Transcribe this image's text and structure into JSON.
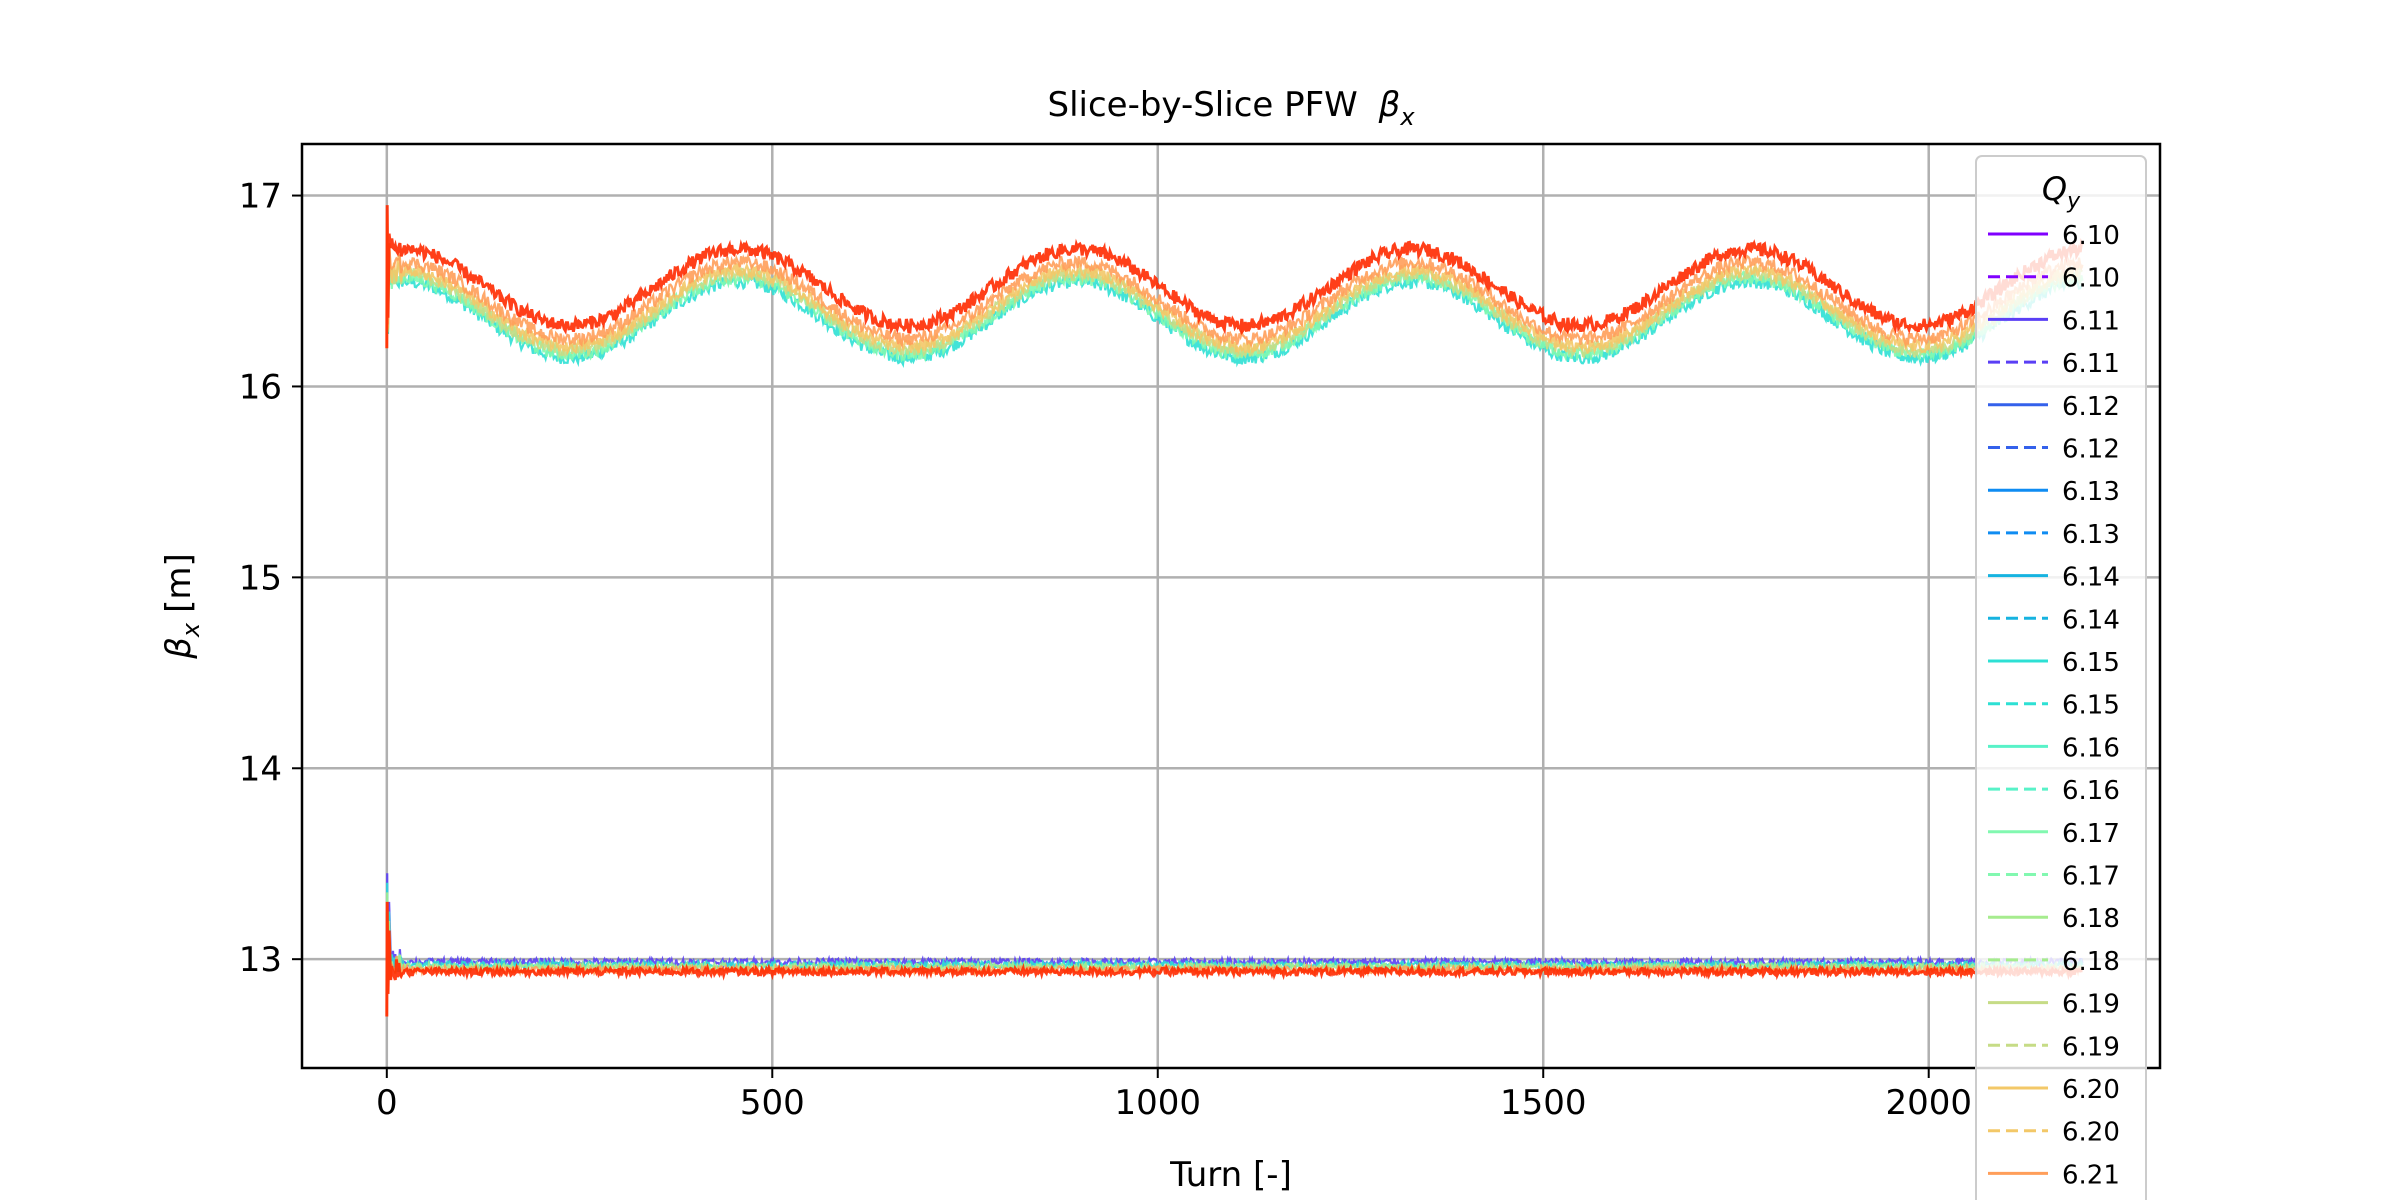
{
  "chart_data": {
    "type": "line",
    "title": "Slice-by-Slice PFW",
    "title_symbol": "β",
    "title_subscript": "x",
    "xlabel": "Turn [-]",
    "ylabel_symbol": "β",
    "ylabel_subscript": "x",
    "ylabel_unit": "[m]",
    "xlim": [
      -110,
      2300
    ],
    "ylim": [
      12.43,
      17.27
    ],
    "xticks": [
      0,
      500,
      1000,
      1500,
      2000
    ],
    "yticks": [
      13,
      14,
      15,
      16,
      17
    ],
    "xtick_labels": [
      "0",
      "500",
      "1000",
      "1500",
      "2000"
    ],
    "ytick_labels": [
      "13",
      "14",
      "15",
      "16",
      "17"
    ],
    "grid": true,
    "x_range": [
      0,
      2200
    ],
    "legend": {
      "placement": "top-right",
      "title_symbol": "Q",
      "title_subscript": "y",
      "entries": [
        {
          "label": "6.10",
          "color": "#8000ff",
          "dash": false
        },
        {
          "label": "6.10",
          "color": "#8000ff",
          "dash": true
        },
        {
          "label": "6.11",
          "color": "#5a3ff5",
          "dash": false
        },
        {
          "label": "6.11",
          "color": "#5a3ff5",
          "dash": true
        },
        {
          "label": "6.12",
          "color": "#3461eb",
          "dash": false
        },
        {
          "label": "6.12",
          "color": "#3461eb",
          "dash": true
        },
        {
          "label": "6.13",
          "color": "#0f8cf2",
          "dash": false
        },
        {
          "label": "6.13",
          "color": "#0f8cf2",
          "dash": true
        },
        {
          "label": "6.14",
          "color": "#16b3e0",
          "dash": false
        },
        {
          "label": "6.14",
          "color": "#16b3e0",
          "dash": true
        },
        {
          "label": "6.15",
          "color": "#2de0d4",
          "dash": false
        },
        {
          "label": "6.15",
          "color": "#2de0d4",
          "dash": true
        },
        {
          "label": "6.16",
          "color": "#58f2c8",
          "dash": false
        },
        {
          "label": "6.16",
          "color": "#58f2c8",
          "dash": true
        },
        {
          "label": "6.17",
          "color": "#82f8b0",
          "dash": false
        },
        {
          "label": "6.17",
          "color": "#82f8b0",
          "dash": true
        },
        {
          "label": "6.18",
          "color": "#a6ec8e",
          "dash": false
        },
        {
          "label": "6.18",
          "color": "#a6ec8e",
          "dash": true
        },
        {
          "label": "6.19",
          "color": "#c6dc86",
          "dash": false
        },
        {
          "label": "6.19",
          "color": "#c6dc86",
          "dash": true
        },
        {
          "label": "6.20",
          "color": "#f3c868",
          "dash": false
        },
        {
          "label": "6.20",
          "color": "#f3c868",
          "dash": true
        },
        {
          "label": "6.21",
          "color": "#ff9e5a",
          "dash": false
        }
      ]
    },
    "series": [
      {
        "group": "upper",
        "color": "#2de0d4",
        "mean": 16.35,
        "amplitude": 0.2,
        "period": 437,
        "phase_turn": 20,
        "noise": 0.035,
        "initial": [
          16.2,
          16.85
        ]
      },
      {
        "group": "upper",
        "color": "#82f8b0",
        "mean": 16.37,
        "amplitude": 0.2,
        "period": 437,
        "phase_turn": 20,
        "noise": 0.035,
        "initial": [
          16.2,
          16.85
        ]
      },
      {
        "group": "upper",
        "color": "#c6dc86",
        "mean": 16.39,
        "amplitude": 0.2,
        "period": 437,
        "phase_turn": 20,
        "noise": 0.035,
        "initial": [
          16.2,
          16.85
        ]
      },
      {
        "group": "upper",
        "color": "#f3c868",
        "mean": 16.41,
        "amplitude": 0.2,
        "period": 437,
        "phase_turn": 20,
        "noise": 0.035,
        "initial": [
          16.2,
          16.9
        ]
      },
      {
        "group": "upper",
        "color": "#ff9e5a",
        "mean": 16.45,
        "amplitude": 0.2,
        "period": 437,
        "phase_turn": 20,
        "noise": 0.035,
        "initial": [
          16.2,
          16.9
        ]
      },
      {
        "group": "upper",
        "color": "#ff2a00",
        "mean": 16.52,
        "amplitude": 0.2,
        "period": 437,
        "phase_turn": 20,
        "noise": 0.035,
        "initial": [
          16.2,
          16.95
        ]
      },
      {
        "group": "lower",
        "color": "#5a3ff5",
        "mean": 12.985,
        "amplitude": 0.0,
        "period": 437,
        "phase_turn": 0,
        "noise": 0.018,
        "initial": [
          12.75,
          13.45
        ]
      },
      {
        "group": "lower",
        "color": "#2de0d4",
        "mean": 12.97,
        "amplitude": 0.0,
        "period": 437,
        "phase_turn": 0,
        "noise": 0.018,
        "initial": [
          12.75,
          13.4
        ]
      },
      {
        "group": "lower",
        "color": "#a6ec8e",
        "mean": 12.96,
        "amplitude": 0.0,
        "period": 437,
        "phase_turn": 0,
        "noise": 0.018,
        "initial": [
          12.75,
          13.35
        ]
      },
      {
        "group": "lower",
        "color": "#ff9e5a",
        "mean": 12.945,
        "amplitude": 0.0,
        "period": 437,
        "phase_turn": 0,
        "noise": 0.018,
        "initial": [
          12.7,
          13.3
        ]
      },
      {
        "group": "lower",
        "color": "#ff2a00",
        "mean": 12.935,
        "amplitude": 0.0,
        "period": 437,
        "phase_turn": 0,
        "noise": 0.018,
        "initial": [
          12.7,
          13.3
        ]
      }
    ]
  }
}
